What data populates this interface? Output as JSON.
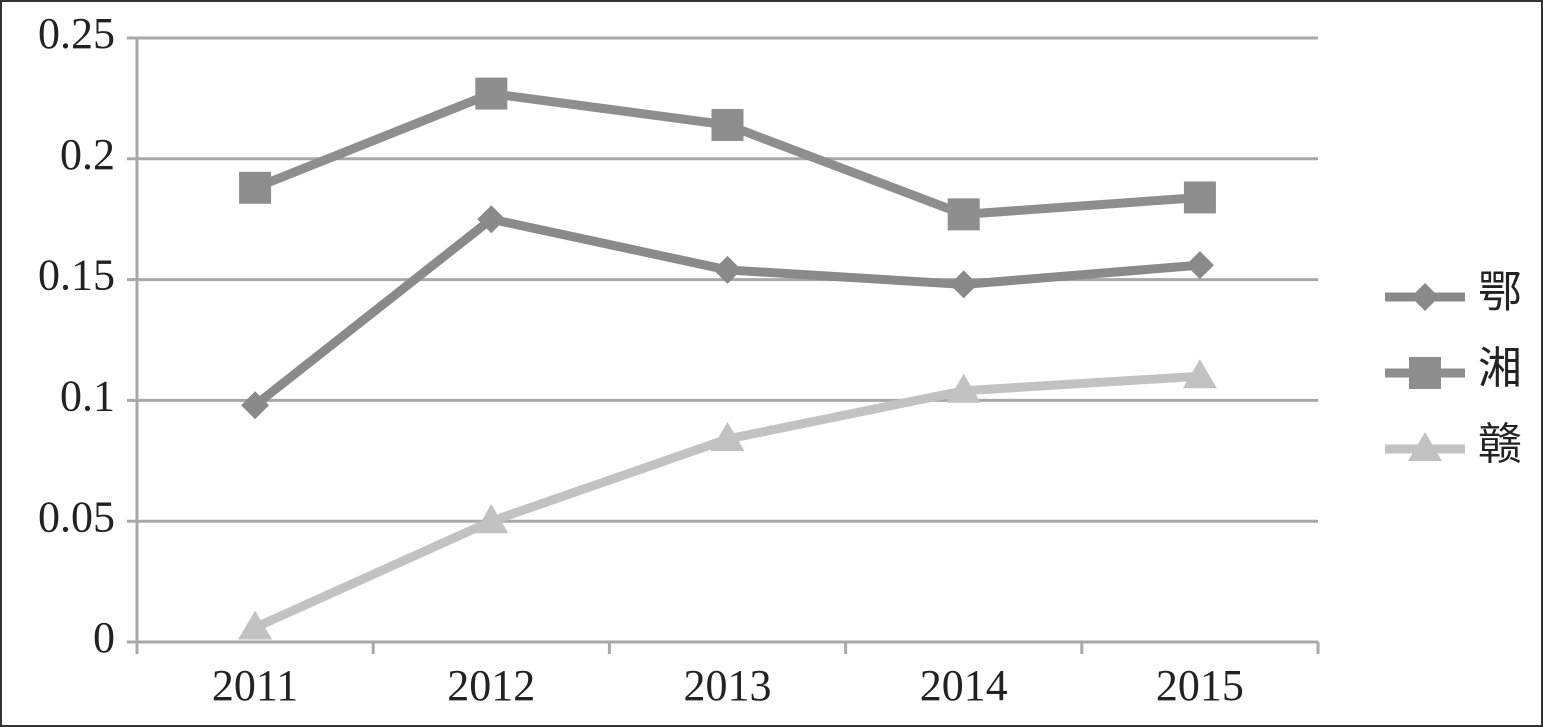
{
  "chart_data": {
    "type": "line",
    "categories": [
      "2011",
      "2012",
      "2013",
      "2014",
      "2015"
    ],
    "series": [
      {
        "name": "鄂",
        "color": "#8a8a8a",
        "marker": "diamond",
        "values": [
          0.098,
          0.175,
          0.154,
          0.148,
          0.156
        ]
      },
      {
        "name": "湘",
        "color": "#8e8e8e",
        "marker": "square",
        "values": [
          0.188,
          0.227,
          0.214,
          0.177,
          0.184
        ]
      },
      {
        "name": "赣",
        "color": "#c2c2c2",
        "marker": "triangle",
        "values": [
          0.006,
          0.05,
          0.084,
          0.104,
          0.11
        ]
      }
    ],
    "ylim": [
      0,
      0.25
    ],
    "yticks": [
      0,
      0.05,
      0.1,
      0.15,
      0.2,
      0.25
    ],
    "grid": true,
    "legend": "right"
  }
}
